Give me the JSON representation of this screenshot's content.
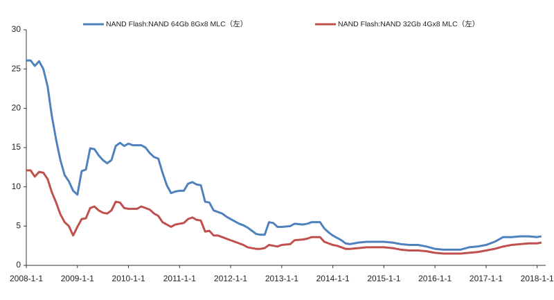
{
  "chart_data": {
    "type": "line",
    "x": [
      "2008-1-1",
      "2008-2-1",
      "2008-3-1",
      "2008-4-1",
      "2008-5-1",
      "2008-6-1",
      "2008-7-1",
      "2008-8-1",
      "2008-9-1",
      "2008-10-1",
      "2008-11-1",
      "2008-12-1",
      "2009-1-1",
      "2009-2-1",
      "2009-3-1",
      "2009-4-1",
      "2009-5-1",
      "2009-6-1",
      "2009-7-1",
      "2009-8-1",
      "2009-9-1",
      "2009-10-1",
      "2009-11-1",
      "2009-12-1",
      "2010-1-1",
      "2010-2-1",
      "2010-3-1",
      "2010-4-1",
      "2010-5-1",
      "2010-6-1",
      "2010-7-1",
      "2010-8-1",
      "2010-9-1",
      "2010-10-1",
      "2010-11-1",
      "2010-12-1",
      "2011-1-1",
      "2011-2-1",
      "2011-3-1",
      "2011-4-1",
      "2011-5-1",
      "2011-6-1",
      "2011-7-1",
      "2011-8-1",
      "2011-9-1",
      "2011-10-1",
      "2011-11-1",
      "2011-12-1",
      "2012-1-1",
      "2012-2-1",
      "2012-3-1",
      "2012-4-1",
      "2012-5-1",
      "2012-6-1",
      "2012-7-1",
      "2012-8-1",
      "2012-9-1",
      "2012-10-1",
      "2012-11-1",
      "2012-12-1",
      "2013-1-1",
      "2013-3-1",
      "2013-4-1",
      "2013-6-1",
      "2013-7-1",
      "2013-8-1",
      "2013-10-1",
      "2013-11-1",
      "2013-12-1",
      "2014-1-1",
      "2014-2-1",
      "2014-3-1",
      "2014-4-1",
      "2014-5-1",
      "2014-7-1",
      "2014-9-1",
      "2014-11-1",
      "2015-1-1",
      "2015-3-1",
      "2015-5-1",
      "2015-7-1",
      "2015-9-1",
      "2015-11-1",
      "2016-1-1",
      "2016-3-1",
      "2016-5-1",
      "2016-7-1",
      "2016-9-1",
      "2016-11-1",
      "2017-1-1",
      "2017-3-1",
      "2017-5-1",
      "2017-7-1",
      "2017-9-1",
      "2017-11-1",
      "2018-1-1",
      "2018-2-1"
    ],
    "series": [
      {
        "name": "NAND Flash:NAND 64Gb 8Gx8 MLC（左）",
        "color": "#4f81bd",
        "values": [
          26.1,
          26.1,
          25.4,
          26.0,
          25.0,
          22.8,
          19.0,
          16.0,
          13.4,
          11.5,
          10.7,
          9.5,
          9.0,
          12.0,
          12.2,
          14.9,
          14.8,
          14.0,
          13.4,
          13.0,
          13.4,
          15.2,
          15.6,
          15.2,
          15.5,
          15.3,
          15.3,
          15.3,
          15.0,
          14.3,
          13.8,
          13.6,
          11.8,
          10.2,
          9.2,
          9.4,
          9.5,
          9.5,
          10.4,
          10.6,
          10.3,
          10.2,
          8.1,
          8.0,
          7.0,
          6.8,
          6.6,
          6.2,
          5.9,
          5.6,
          5.3,
          5.1,
          4.8,
          4.4,
          4.0,
          3.9,
          3.9,
          5.5,
          5.4,
          4.9,
          4.9,
          5.0,
          5.3,
          5.2,
          5.3,
          5.5,
          5.5,
          4.7,
          4.2,
          3.8,
          3.5,
          3.2,
          2.8,
          2.7,
          2.9,
          3.0,
          3.0,
          3.0,
          2.9,
          2.7,
          2.6,
          2.6,
          2.4,
          2.1,
          2.0,
          2.0,
          2.0,
          2.3,
          2.4,
          2.6,
          3.0,
          3.6,
          3.6,
          3.7,
          3.7,
          3.6,
          3.7
        ]
      },
      {
        "name": "NAND Flash:NAND 32Gb 4Gx8 MLC（左）",
        "color": "#c0504d",
        "values": [
          12.1,
          12.1,
          11.3,
          11.9,
          11.8,
          11.0,
          9.3,
          8.0,
          6.5,
          5.5,
          5.0,
          3.8,
          4.9,
          5.9,
          6.0,
          7.3,
          7.5,
          7.0,
          6.7,
          6.6,
          7.0,
          8.1,
          8.0,
          7.3,
          7.2,
          7.2,
          7.2,
          7.5,
          7.3,
          7.1,
          6.6,
          6.3,
          5.5,
          5.2,
          4.9,
          5.2,
          5.3,
          5.4,
          5.9,
          6.1,
          5.8,
          5.7,
          4.3,
          4.4,
          3.8,
          3.8,
          3.6,
          3.4,
          3.2,
          3.0,
          2.8,
          2.6,
          2.3,
          2.2,
          2.1,
          2.1,
          2.2,
          2.6,
          2.5,
          2.4,
          2.6,
          2.7,
          3.2,
          3.3,
          3.4,
          3.6,
          3.6,
          3.0,
          2.8,
          2.6,
          2.5,
          2.3,
          2.1,
          2.1,
          2.2,
          2.3,
          2.3,
          2.3,
          2.2,
          2.0,
          1.9,
          1.9,
          1.8,
          1.6,
          1.5,
          1.5,
          1.5,
          1.6,
          1.7,
          1.9,
          2.1,
          2.4,
          2.6,
          2.7,
          2.8,
          2.8,
          2.9
        ]
      }
    ],
    "xlim": [
      "2008-1-1",
      "2018-3-1"
    ],
    "xticks": [
      "2008-1-1",
      "2009-1-1",
      "2010-1-1",
      "2011-1-1",
      "2012-1-1",
      "2013-1-1",
      "2014-1-1",
      "2015-1-1",
      "2016-1-1",
      "2017-1-1",
      "2018-1-1"
    ],
    "ylim": [
      0,
      30
    ],
    "yticks": [
      0,
      5,
      10,
      15,
      20,
      25,
      30
    ],
    "grid": false,
    "legend": "top"
  }
}
